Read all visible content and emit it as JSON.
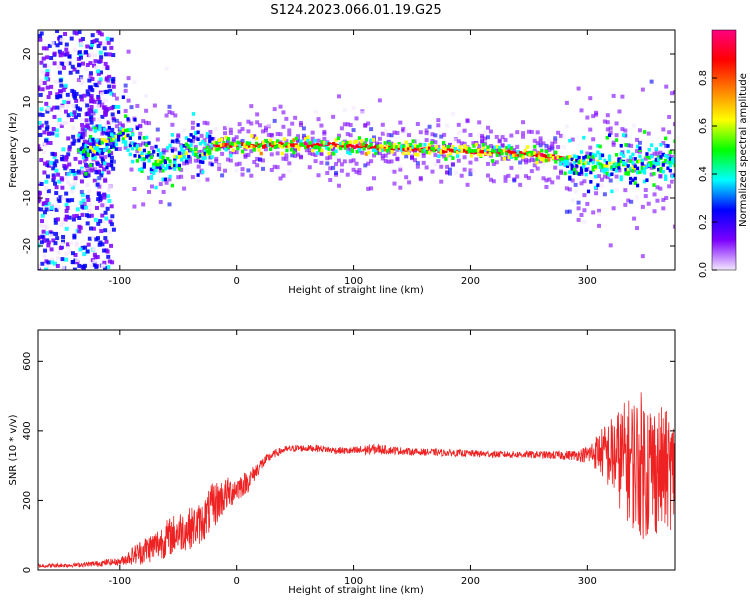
{
  "figure": {
    "title": "S124.2023.066.01.19.G25"
  },
  "chart_data": [
    {
      "type": "heatmap",
      "panel": "top",
      "xlabel": "Height of straight line (km)",
      "ylabel": "Frequency (Hz)",
      "xlim": [
        -170,
        375
      ],
      "ylim": [
        -25,
        25
      ],
      "xticks": [
        -100,
        0,
        100,
        200,
        300
      ],
      "yticks": [
        -20,
        -10,
        0,
        10,
        20
      ],
      "colorbar": {
        "label": "Normalized spectral amplitude",
        "range": [
          0,
          1
        ],
        "ticks": [
          "0.0",
          "0.2",
          "0.4",
          "0.6",
          "0.8"
        ],
        "colors": [
          "#f4e8ff",
          "#7b00ff",
          "#0000ff",
          "#00ffff",
          "#00ff00",
          "#ffff00",
          "#ff8000",
          "#ff0000",
          "#ff0080"
        ]
      },
      "ridge": {
        "x": [
          -130,
          -120,
          -110,
          -100,
          -90,
          -80,
          -70,
          -60,
          -50,
          -40,
          -30,
          -20,
          0,
          25,
          50,
          75,
          100,
          125,
          150,
          175,
          200,
          225,
          250,
          270,
          290,
          310,
          330,
          350,
          375
        ],
        "y": [
          0,
          0.5,
          2,
          4,
          3,
          -1,
          -3,
          -2,
          -2,
          0.5,
          -1.5,
          0.8,
          1,
          1,
          1,
          1,
          0.8,
          0.5,
          0.2,
          0,
          -0.3,
          -0.5,
          -0.8,
          -1.5,
          -2.2,
          -3,
          -3,
          -2.8,
          -2.5
        ]
      }
    },
    {
      "type": "line",
      "panel": "bottom",
      "xlabel": "Height of straight line (km)",
      "ylabel": "SNR (10 * v/v)",
      "xlim": [
        -170,
        375
      ],
      "ylim": [
        0,
        690
      ],
      "xticks": [
        -100,
        0,
        100,
        200,
        300
      ],
      "yticks": [
        0,
        200,
        400,
        600
      ],
      "series": [
        {
          "color": "#ee2222",
          "x": [
            -170,
            -140,
            -120,
            -110,
            -100,
            -90,
            -80,
            -70,
            -60,
            -50,
            -40,
            -30,
            -20,
            -10,
            0,
            10,
            20,
            30,
            40,
            50,
            60,
            70,
            80,
            90,
            100,
            110,
            120,
            130,
            150,
            170,
            190,
            210,
            230,
            250,
            270,
            290,
            300,
            310,
            320,
            330,
            340,
            350,
            360,
            375
          ],
          "mean": [
            12,
            14,
            18,
            22,
            24,
            40,
            55,
            70,
            90,
            110,
            120,
            135,
            185,
            215,
            235,
            255,
            300,
            330,
            345,
            350,
            350,
            350,
            345,
            343,
            342,
            345,
            348,
            345,
            340,
            338,
            336,
            334,
            332,
            332,
            330,
            330,
            332,
            340,
            330,
            320,
            310,
            300,
            290,
            280
          ],
          "spread": [
            6,
            6,
            8,
            10,
            10,
            25,
            40,
            45,
            55,
            60,
            60,
            60,
            70,
            50,
            40,
            30,
            20,
            12,
            10,
            10,
            10,
            10,
            10,
            10,
            12,
            15,
            15,
            12,
            10,
            10,
            10,
            10,
            10,
            10,
            12,
            15,
            25,
            60,
            110,
            160,
            200,
            220,
            190,
            160
          ]
        }
      ]
    }
  ]
}
